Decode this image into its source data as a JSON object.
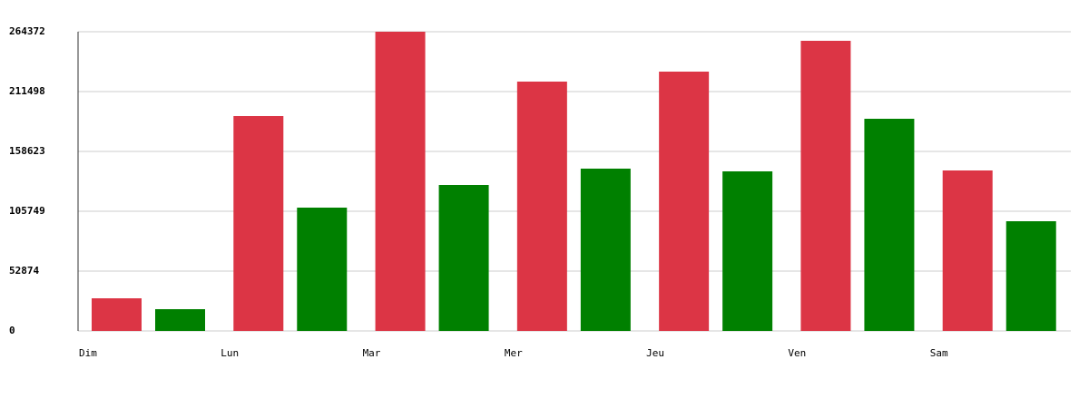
{
  "chart_data": {
    "type": "bar",
    "categories": [
      "Dim",
      "Lun",
      "Mar",
      "Mer",
      "Jeu",
      "Ven",
      "Sam"
    ],
    "series": [
      {
        "color": "#dc3545",
        "values": [
          28840,
          189860,
          264372,
          220310,
          229120,
          256360,
          141800
        ]
      },
      {
        "color": "#008000",
        "values": [
          19227,
          108950,
          128980,
          143400,
          141000,
          187460,
          96930
        ]
      }
    ],
    "ylim": [
      0,
      264372
    ],
    "yticks": [
      0,
      52874,
      105749,
      158623,
      211498,
      264372
    ],
    "grid": true
  }
}
